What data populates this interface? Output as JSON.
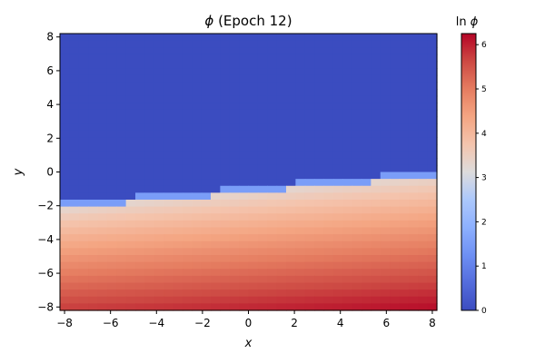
{
  "chart_data": {
    "type": "heatmap",
    "title_symbol": "ϕ",
    "title_rest": " (Epoch 12)",
    "xlabel": "x",
    "ylabel": "y",
    "xlim": [
      -8.2,
      8.2
    ],
    "ylim": [
      -8.2,
      8.2
    ],
    "grid_cells": 40,
    "xticks": [
      -8,
      -6,
      -4,
      -2,
      0,
      2,
      4,
      6,
      8
    ],
    "xtick_labels": [
      "−8",
      "−6",
      "−4",
      "−2",
      "0",
      "2",
      "4",
      "6",
      "8"
    ],
    "yticks": [
      -8,
      -6,
      -4,
      -2,
      0,
      2,
      4,
      6,
      8
    ],
    "ytick_labels": [
      "−8",
      "−6",
      "−4",
      "−2",
      "0",
      "2",
      "4",
      "6",
      "8"
    ],
    "colorbar": {
      "label_prefix": "ln",
      "label_symbol": "ϕ",
      "range": [
        0,
        6.25
      ],
      "ticks": [
        0,
        1,
        2,
        3,
        4,
        5,
        6
      ],
      "tick_labels": [
        "0",
        "1",
        "2",
        "3",
        "4",
        "5",
        "6"
      ],
      "colormap": "coolwarm"
    },
    "field_model": {
      "description": "ln phi is 0 above the boundary line and increases with distance below it",
      "boundary_y_at_x_neg8": -2.0,
      "boundary_y_at_x_8": -0.1,
      "value_at_boundary": 3.2,
      "value_at_bottom_left": 5.75,
      "value_at_bottom_right": 6.2
    }
  }
}
